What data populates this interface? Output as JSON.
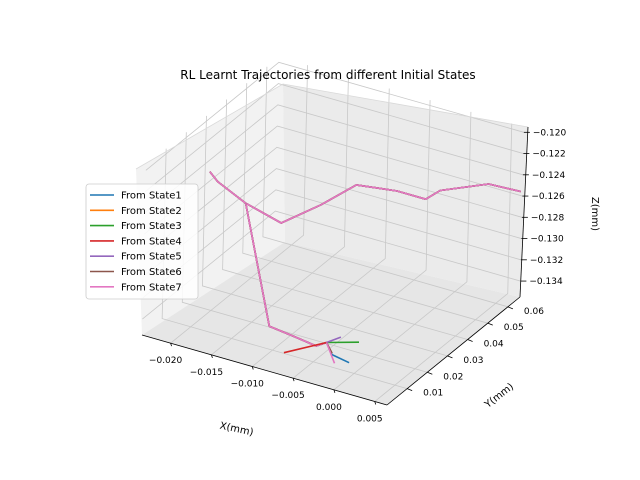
{
  "chart_data": {
    "type": "line3d",
    "title": "RL Learnt Trajectories from different Initial States",
    "xlabel": "X(mm)",
    "ylabel": "Y(mm)",
    "zlabel": "Z(mm)",
    "xlim": [
      -0.0235,
      0.0065
    ],
    "ylim": [
      0.0,
      0.066
    ],
    "zlim": [
      -0.1355,
      -0.1195
    ],
    "x_ticks": [
      -0.02,
      -0.015,
      -0.01,
      -0.005,
      0.0,
      0.005
    ],
    "x_tick_labels": [
      "−0.020",
      "−0.015",
      "−0.010",
      "−0.005",
      "0.000",
      "0.005"
    ],
    "y_ticks": [
      0.01,
      0.02,
      0.03,
      0.04,
      0.05,
      0.06
    ],
    "y_tick_labels": [
      "0.01",
      "0.02",
      "0.03",
      "0.04",
      "0.05",
      "0.06"
    ],
    "z_ticks": [
      -0.134,
      -0.132,
      -0.13,
      -0.128,
      -0.126,
      -0.124,
      -0.122,
      -0.12
    ],
    "z_tick_labels": [
      "−0.134",
      "−0.132",
      "−0.130",
      "−0.128",
      "−0.126",
      "−0.124",
      "−0.122",
      "−0.120"
    ],
    "legend": "center-left",
    "grid": true,
    "series": [
      {
        "name": "From State1",
        "color": "#1f77b4"
      },
      {
        "name": "From State2",
        "color": "#ff7f0e"
      },
      {
        "name": "From State3",
        "color": "#2ca02c"
      },
      {
        "name": "From State4",
        "color": "#d62728"
      },
      {
        "name": "From State5",
        "color": "#9467bd"
      },
      {
        "name": "From State6",
        "color": "#8c564b"
      },
      {
        "name": "From State7",
        "color": "#e377c2"
      }
    ],
    "main_path": [
      [
        -0.0222,
        0.027,
        -0.124
      ],
      [
        -0.0205,
        0.024,
        -0.1241
      ],
      [
        -0.018,
        0.028,
        -0.1262
      ],
      [
        -0.0135,
        0.0275,
        -0.127
      ],
      [
        -0.011,
        0.037,
        -0.1262
      ],
      [
        -0.007,
        0.038,
        -0.1236
      ],
      [
        -0.0025,
        0.04,
        -0.1235
      ],
      [
        0.001,
        0.04,
        -0.1235
      ],
      [
        0.0025,
        0.041,
        -0.1225
      ],
      [
        0.005,
        0.055,
        -0.1235
      ],
      [
        0.007,
        0.063,
        -0.125
      ]
    ],
    "branch": [
      [
        -0.018,
        0.028,
        -0.1262
      ],
      [
        -0.009,
        0.004,
        -0.1321
      ],
      [
        -0.006,
        0.004,
        -0.1324
      ],
      [
        -0.003,
        0.003,
        -0.1325
      ],
      [
        -0.002,
        0.004,
        -0.1321
      ]
    ],
    "stubs": [
      {
        "series": 0,
        "points": [
          [
            -0.002,
            0.004,
            -0.1321
          ],
          [
            -0.0012,
            0.0036,
            -0.133
          ],
          [
            0.0009,
            0.0036,
            -0.1333
          ]
        ]
      },
      {
        "series": 2,
        "points": [
          [
            -0.002,
            0.004,
            -0.1321
          ],
          [
            0.0008,
            0.0088,
            -0.1322
          ]
        ]
      },
      {
        "series": 3,
        "points": [
          [
            -0.002,
            0.004,
            -0.1321
          ],
          [
            -0.0067,
            0.0021,
            -0.1338
          ]
        ]
      },
      {
        "series": 4,
        "points": [
          [
            -0.002,
            0.004,
            -0.1321
          ],
          [
            -0.0013,
            0.0083,
            -0.1321
          ]
        ]
      },
      {
        "series": 5,
        "points": [
          [
            -0.002,
            0.004,
            -0.1321
          ],
          [
            -0.001,
            0.0028,
            -0.1327
          ]
        ]
      },
      {
        "series": 6,
        "points": [
          [
            -0.002,
            0.004,
            -0.1321
          ],
          [
            0.0,
            0.0,
            -0.133
          ]
        ]
      }
    ]
  }
}
